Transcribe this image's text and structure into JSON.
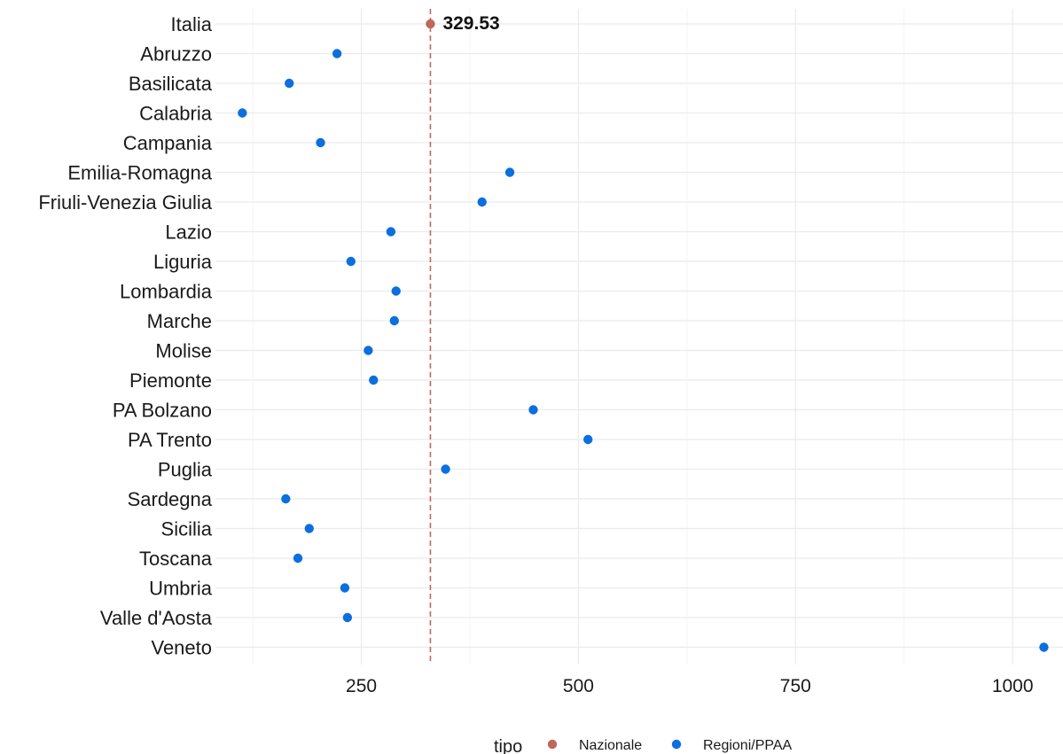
{
  "chart_data": {
    "type": "scatter",
    "orientation": "horizontal-dot",
    "x_ticks": [
      250,
      500,
      750,
      1000
    ],
    "xlim": [
      82,
      1058
    ],
    "grid": true,
    "legend_position": "bottom",
    "legend": {
      "title": "tipo",
      "entries": [
        {
          "label": "Nazionale",
          "color": "#c0675b"
        },
        {
          "label": "Regioni/PPAA",
          "color": "#0b6fe0"
        }
      ]
    },
    "reference_line": {
      "value": 329.53,
      "label": "329.53",
      "color": "#c0675b",
      "style": "dashed"
    },
    "points": [
      {
        "label": "Italia",
        "value": 329.53,
        "tipo": "Nazionale"
      },
      {
        "label": "Abruzzo",
        "value": 222,
        "tipo": "Regioni/PPAA"
      },
      {
        "label": "Basilicata",
        "value": 167,
        "tipo": "Regioni/PPAA"
      },
      {
        "label": "Calabria",
        "value": 113,
        "tipo": "Regioni/PPAA"
      },
      {
        "label": "Campania",
        "value": 203,
        "tipo": "Regioni/PPAA"
      },
      {
        "label": "Emilia-Romagna",
        "value": 421,
        "tipo": "Regioni/PPAA"
      },
      {
        "label": "Friuli-Venezia Giulia",
        "value": 389,
        "tipo": "Regioni/PPAA"
      },
      {
        "label": "Lazio",
        "value": 284,
        "tipo": "Regioni/PPAA"
      },
      {
        "label": "Liguria",
        "value": 238,
        "tipo": "Regioni/PPAA"
      },
      {
        "label": "Lombardia",
        "value": 290,
        "tipo": "Regioni/PPAA"
      },
      {
        "label": "Marche",
        "value": 288,
        "tipo": "Regioni/PPAA"
      },
      {
        "label": "Molise",
        "value": 258,
        "tipo": "Regioni/PPAA"
      },
      {
        "label": "Piemonte",
        "value": 264,
        "tipo": "Regioni/PPAA"
      },
      {
        "label": "PA Bolzano",
        "value": 448,
        "tipo": "Regioni/PPAA"
      },
      {
        "label": "PA Trento",
        "value": 511,
        "tipo": "Regioni/PPAA"
      },
      {
        "label": "Puglia",
        "value": 347,
        "tipo": "Regioni/PPAA"
      },
      {
        "label": "Sardegna",
        "value": 163,
        "tipo": "Regioni/PPAA"
      },
      {
        "label": "Sicilia",
        "value": 190,
        "tipo": "Regioni/PPAA"
      },
      {
        "label": "Toscana",
        "value": 177,
        "tipo": "Regioni/PPAA"
      },
      {
        "label": "Umbria",
        "value": 231,
        "tipo": "Regioni/PPAA"
      },
      {
        "label": "Valle d'Aosta",
        "value": 234,
        "tipo": "Regioni/PPAA"
      },
      {
        "label": "Veneto",
        "value": 1036,
        "tipo": "Regioni/PPAA"
      }
    ]
  }
}
